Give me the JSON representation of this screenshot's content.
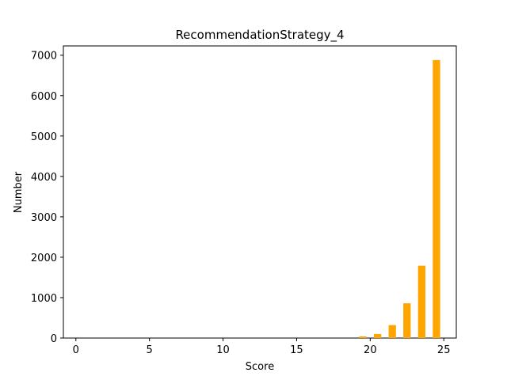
{
  "chart_data": {
    "type": "bar",
    "title": "RecommendationStrategy_4",
    "xlabel": "Score",
    "ylabel": "Number",
    "xlim": [
      -0.85,
      25.85
    ],
    "ylim": [
      0,
      7230
    ],
    "bar_width": 0.5,
    "bar_color": "#ffa500",
    "x_ticks": [
      0,
      5,
      10,
      15,
      20,
      25
    ],
    "y_ticks": [
      0,
      1000,
      2000,
      3000,
      4000,
      5000,
      6000,
      7000
    ],
    "x": [
      19.5,
      20.5,
      21.5,
      22.5,
      23.5,
      24.5
    ],
    "values": [
      40,
      100,
      320,
      860,
      1790,
      6880
    ],
    "grid": false,
    "legend": null
  }
}
